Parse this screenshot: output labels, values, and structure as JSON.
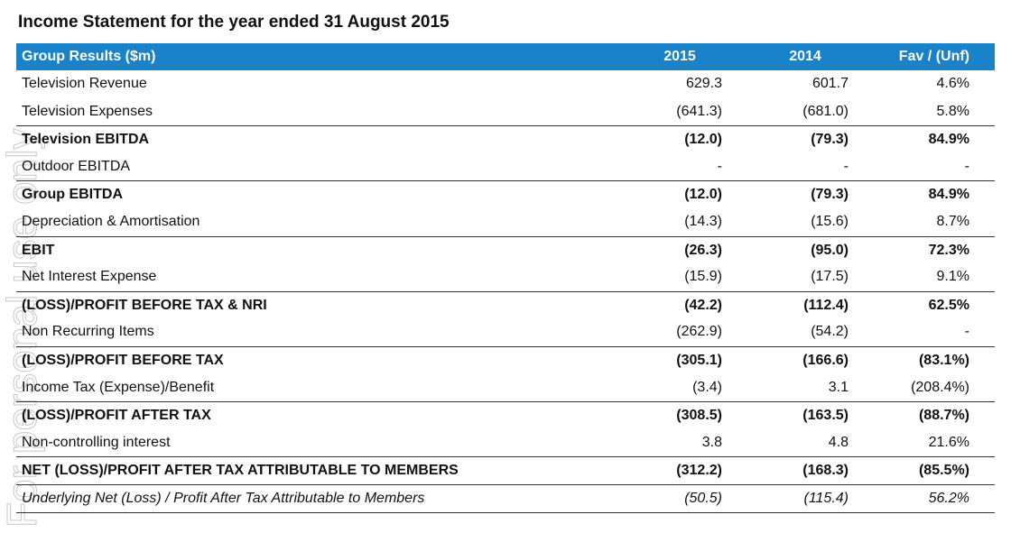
{
  "title": "Income Statement for the year ended 31 August 2015",
  "watermark": "For personal use only",
  "table": {
    "header": [
      "Group Results ($m)",
      "2015",
      "2014",
      "Fav / (Unf)"
    ],
    "rows": [
      {
        "cells": [
          "Television Revenue",
          "629.3",
          "601.7",
          "4.6%"
        ],
        "style": "normal"
      },
      {
        "cells": [
          "Television Expenses",
          "(641.3)",
          "(681.0)",
          "5.8%"
        ],
        "style": "normal"
      },
      {
        "cells": [
          "Television EBITDA",
          "(12.0)",
          "(79.3)",
          "84.9%"
        ],
        "style": "bold"
      },
      {
        "cells": [
          "Outdoor EBITDA",
          "-",
          "-",
          "-"
        ],
        "style": "normal"
      },
      {
        "cells": [
          "Group EBITDA",
          "(12.0)",
          "(79.3)",
          "84.9%"
        ],
        "style": "bold"
      },
      {
        "cells": [
          "Depreciation & Amortisation",
          "(14.3)",
          "(15.6)",
          "8.7%"
        ],
        "style": "normal"
      },
      {
        "cells": [
          "EBIT",
          "(26.3)",
          "(95.0)",
          "72.3%"
        ],
        "style": "bold"
      },
      {
        "cells": [
          "Net Interest Expense",
          "(15.9)",
          "(17.5)",
          "9.1%"
        ],
        "style": "normal"
      },
      {
        "cells": [
          "(LOSS)/PROFIT BEFORE TAX & NRI",
          "(42.2)",
          "(112.4)",
          "62.5%"
        ],
        "style": "bold"
      },
      {
        "cells": [
          "Non Recurring Items",
          "(262.9)",
          "(54.2)",
          "-"
        ],
        "style": "normal"
      },
      {
        "cells": [
          "(LOSS)/PROFIT BEFORE TAX",
          "(305.1)",
          "(166.6)",
          "(83.1%)"
        ],
        "style": "bold"
      },
      {
        "cells": [
          "Income Tax (Expense)/Benefit",
          "(3.4)",
          "3.1",
          "(208.4%)"
        ],
        "style": "normal"
      },
      {
        "cells": [
          "(LOSS)/PROFIT AFTER TAX",
          "(308.5)",
          "(163.5)",
          "(88.7%)"
        ],
        "style": "bold"
      },
      {
        "cells": [
          "Non-controlling interest",
          "3.8",
          "4.8",
          "21.6%"
        ],
        "style": "normal"
      },
      {
        "cells": [
          "NET (LOSS)/PROFIT AFTER TAX ATTRIBUTABLE TO MEMBERS",
          "(312.2)",
          "(168.3)",
          "(85.5%)"
        ],
        "style": "bold"
      },
      {
        "cells": [
          "Underlying Net (Loss) / Profit After Tax Attributable to Members",
          "(50.5)",
          "(115.4)",
          "56.2%"
        ],
        "style": "italic"
      }
    ]
  }
}
